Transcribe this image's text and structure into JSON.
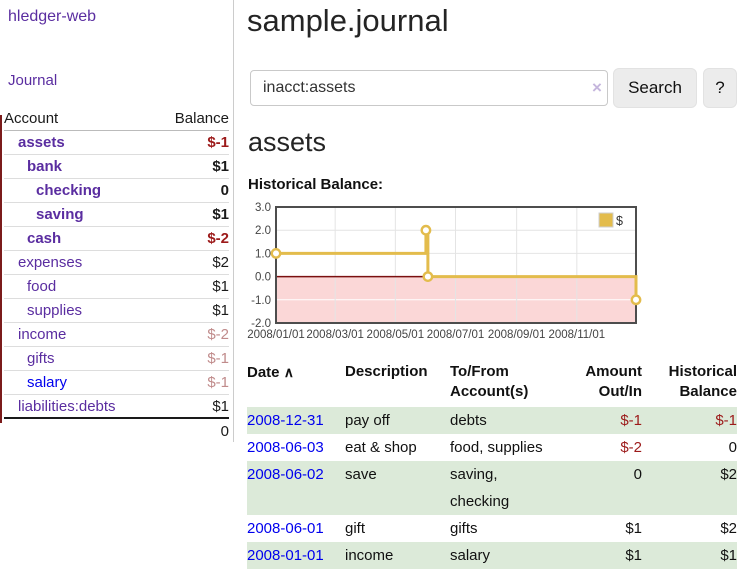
{
  "colors": {
    "purple": "#5a2da0",
    "linkblue": "#0000ee",
    "negred": "#9c1a1a",
    "fadedred": "#c08b8b",
    "stripe": "#dcead9",
    "accent-maroon": "#7b1b1b",
    "gold": "#e3bc4c",
    "chart-pink": "#fbd7d7",
    "zero-line": "#7a0f0f"
  },
  "app": {
    "brand": "hledger-web",
    "nav_journal": "Journal"
  },
  "sidebar": {
    "accounts_header": {
      "account": "Account",
      "balance": "Balance"
    },
    "accounts": [
      {
        "name": "assets",
        "indent": 1,
        "bold": true,
        "balance": "$-1",
        "balance_style": "neg"
      },
      {
        "name": "bank",
        "indent": 2,
        "bold": true,
        "balance": "$1",
        "balance_style": "pos"
      },
      {
        "name": "checking",
        "indent": 3,
        "bold": true,
        "balance": "0",
        "balance_style": "pos"
      },
      {
        "name": "saving",
        "indent": 3,
        "bold": true,
        "balance": "$1",
        "balance_style": "pos"
      },
      {
        "name": "cash",
        "indent": 2,
        "bold": true,
        "balance": "$-2",
        "balance_style": "neg"
      },
      {
        "name": "expenses",
        "indent": 1,
        "bold": false,
        "balance": "$2",
        "balance_style": "pos"
      },
      {
        "name": "food",
        "indent": 2,
        "bold": false,
        "balance": "$1",
        "balance_style": "pos"
      },
      {
        "name": "supplies",
        "indent": 2,
        "bold": false,
        "balance": "$1",
        "balance_style": "pos"
      },
      {
        "name": "income",
        "indent": 1,
        "bold": false,
        "balance": "$-2",
        "balance_style": "neg-faded"
      },
      {
        "name": "gifts",
        "indent": 2,
        "bold": false,
        "balance": "$-1",
        "balance_style": "neg-faded"
      },
      {
        "name": "salary",
        "indent": 2,
        "bold": false,
        "balance": "$-1",
        "balance_style": "neg-faded",
        "link_style": "unvisited"
      },
      {
        "name": "liabilities:debts",
        "indent": 1,
        "bold": false,
        "balance": "$1",
        "balance_style": "pos"
      }
    ],
    "total": "0"
  },
  "header": {
    "title": "sample.journal"
  },
  "search": {
    "value": "inacct:assets",
    "clear_label": "×",
    "button": "Search",
    "help_button": "?"
  },
  "account_page": {
    "heading": "assets",
    "chart_title": "Historical Balance:"
  },
  "chart_data": {
    "type": "line",
    "title": "Historical Balance",
    "legend": [
      {
        "label": "$",
        "color": "#e3bc4c"
      }
    ],
    "legend_position": "top-right",
    "grid": true,
    "step": true,
    "x_axis": {
      "kind": "time",
      "domain_days": [
        0,
        365
      ],
      "ticks": [
        {
          "label": "2008/01/01",
          "day": 0
        },
        {
          "label": "2008/03/01",
          "day": 60
        },
        {
          "label": "2008/05/01",
          "day": 121
        },
        {
          "label": "2008/07/01",
          "day": 182
        },
        {
          "label": "2008/09/01",
          "day": 244
        },
        {
          "label": "2008/11/01",
          "day": 305
        }
      ]
    },
    "y_axis": {
      "min": -2,
      "max": 3,
      "tick_step": 1,
      "tick_labels": [
        "3.0",
        "2.0",
        "1.0",
        "0.0",
        "-1.0",
        "-2.0"
      ]
    },
    "series": [
      {
        "name": "$",
        "color": "#e3bc4c",
        "points": [
          {
            "date": "2008-01-01",
            "day": 0,
            "value": 1
          },
          {
            "date": "2008-06-01",
            "day": 152,
            "value": 2
          },
          {
            "date": "2008-06-03",
            "day": 154,
            "value": 0
          },
          {
            "date": "2008-12-31",
            "day": 365,
            "value": -1
          }
        ]
      }
    ],
    "negative_region": true
  },
  "register": {
    "headers": {
      "date": "Date",
      "sort_indicator": "∧",
      "description": "Description",
      "tofrom_line1": "To/From",
      "tofrom_line2": "Account(s)",
      "amount_line1": "Amount",
      "amount_line2": "Out/In",
      "hist_line1": "Historical",
      "hist_line2": "Balance"
    },
    "rows": [
      {
        "date": "2008-12-31",
        "description": "pay off",
        "accounts": [
          "debts"
        ],
        "amount": "$-1",
        "amount_neg": true,
        "balance": "$-1",
        "balance_neg": true
      },
      {
        "date": "2008-06-03",
        "description": "eat & shop",
        "accounts": [
          "food, supplies"
        ],
        "amount": "$-2",
        "amount_neg": true,
        "balance": "0",
        "balance_neg": false
      },
      {
        "date": "2008-06-02",
        "description": "save",
        "accounts": [
          "saving,",
          "checking"
        ],
        "amount": "0",
        "amount_neg": false,
        "balance": "$2",
        "balance_neg": false
      },
      {
        "date": "2008-06-01",
        "description": "gift",
        "accounts": [
          "gifts"
        ],
        "amount": "$1",
        "amount_neg": false,
        "balance": "$2",
        "balance_neg": false
      },
      {
        "date": "2008-01-01",
        "description": "income",
        "accounts": [
          "salary"
        ],
        "amount": "$1",
        "amount_neg": false,
        "balance": "$1",
        "balance_neg": false
      }
    ]
  }
}
